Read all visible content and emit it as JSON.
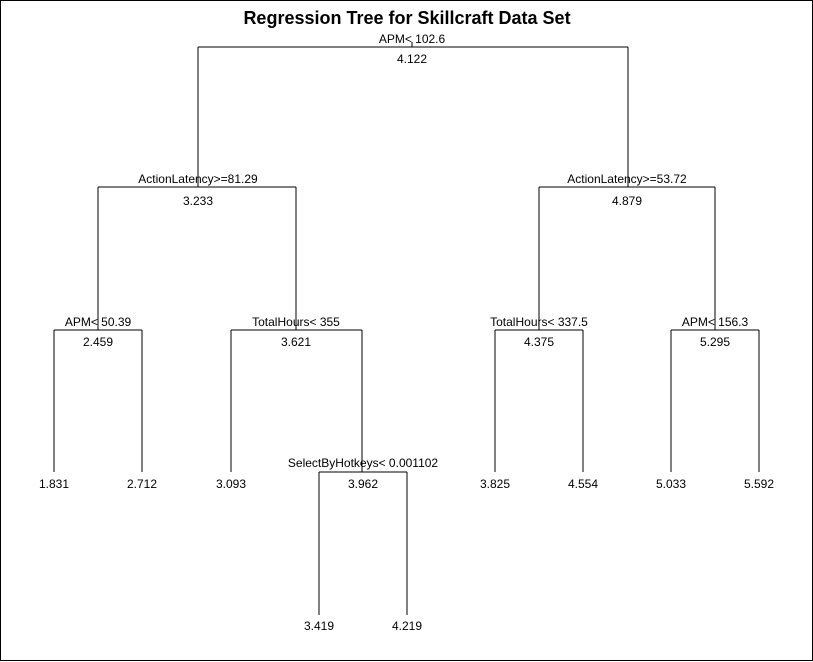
{
  "title": "Regression Tree for Skillcraft Data Set",
  "nodes": [
    {
      "id": "root",
      "split": "APM< 102.6",
      "value": "4.122"
    },
    {
      "id": "l",
      "split": "ActionLatency>=81.29",
      "value": "3.233"
    },
    {
      "id": "r",
      "split": "ActionLatency>=53.72",
      "value": "4.879"
    },
    {
      "id": "ll",
      "split": "APM< 50.39",
      "value": "2.459"
    },
    {
      "id": "lr",
      "split": "TotalHours< 355",
      "value": "3.621"
    },
    {
      "id": "rl",
      "split": "TotalHours< 337.5",
      "value": "4.375"
    },
    {
      "id": "rr",
      "split": "APM< 156.3",
      "value": "5.295"
    },
    {
      "id": "lrr",
      "split": "SelectByHotkeys< 0.001102",
      "value": "3.962"
    },
    {
      "id": "leaf1",
      "value": "1.831"
    },
    {
      "id": "leaf2",
      "value": "2.712"
    },
    {
      "id": "leaf3",
      "value": "3.093"
    },
    {
      "id": "leaf4",
      "value": "3.825"
    },
    {
      "id": "leaf5",
      "value": "4.554"
    },
    {
      "id": "leaf6",
      "value": "5.033"
    },
    {
      "id": "leaf7",
      "value": "5.592"
    },
    {
      "id": "leaf8",
      "value": "3.419"
    },
    {
      "id": "leaf9",
      "value": "4.219"
    }
  ]
}
